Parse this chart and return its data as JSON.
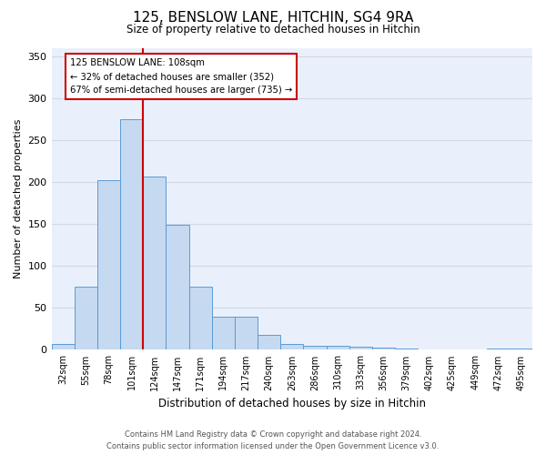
{
  "title": "125, BENSLOW LANE, HITCHIN, SG4 9RA",
  "subtitle": "Size of property relative to detached houses in Hitchin",
  "xlabel": "Distribution of detached houses by size in Hitchin",
  "ylabel": "Number of detached properties",
  "categories": [
    "32sqm",
    "55sqm",
    "78sqm",
    "101sqm",
    "124sqm",
    "147sqm",
    "171sqm",
    "194sqm",
    "217sqm",
    "240sqm",
    "263sqm",
    "286sqm",
    "310sqm",
    "333sqm",
    "356sqm",
    "379sqm",
    "402sqm",
    "425sqm",
    "449sqm",
    "472sqm",
    "495sqm"
  ],
  "values": [
    7,
    75,
    202,
    275,
    206,
    149,
    75,
    40,
    40,
    18,
    7,
    5,
    5,
    4,
    3,
    2,
    0,
    0,
    0,
    2,
    2
  ],
  "bar_color": "#c5d9f0",
  "bar_edge_color": "#5b9bd5",
  "vline_color": "#cc0000",
  "annotation_text": "125 BENSLOW LANE: 108sqm\n← 32% of detached houses are smaller (352)\n67% of semi-detached houses are larger (735) →",
  "annotation_box_edge": "#cc0000",
  "ylim": [
    0,
    360
  ],
  "yticks": [
    0,
    50,
    100,
    150,
    200,
    250,
    300,
    350
  ],
  "grid_color": "#d0d8e8",
  "background_color": "#eaf0fb",
  "footer_line1": "Contains HM Land Registry data © Crown copyright and database right 2024.",
  "footer_line2": "Contains public sector information licensed under the Open Government Licence v3.0."
}
